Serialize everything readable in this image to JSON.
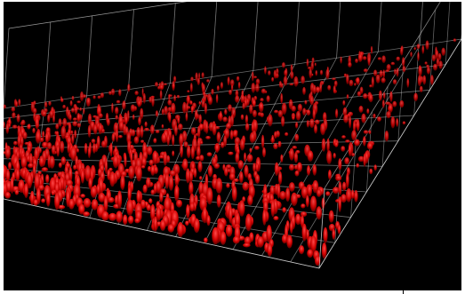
{
  "viewport": {
    "background": "#000000",
    "grid_color": "#d8d8d8",
    "spike_color": "#e00000",
    "spike_highlight": "#ff3030",
    "grid": {
      "cols": 11,
      "rows": 9
    }
  }
}
